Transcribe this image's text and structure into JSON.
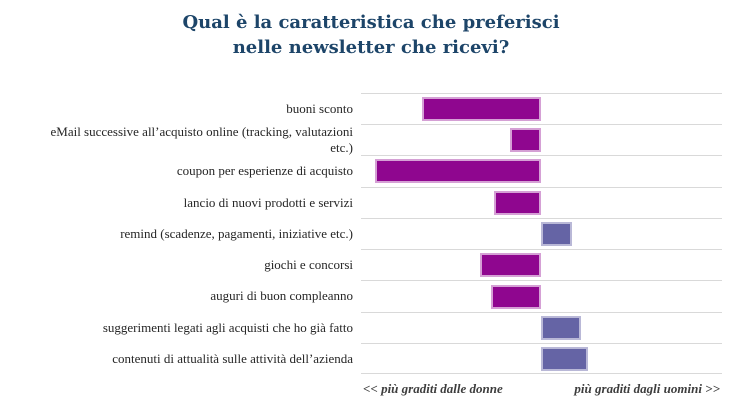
{
  "title": "Qual è la caratteristica che preferisci\nnelle newsletter che ricevi?",
  "axis": {
    "left_label": "<< più graditi dalle donne",
    "right_label": "più graditi dagli uomini  >>"
  },
  "colors": {
    "title": "#1d4569",
    "label_text": "#262626",
    "axis_text": "#3d3d3d",
    "gridline": "#d9d9d9",
    "women_bar": "#8f068f",
    "women_bar_border": "#d5a0d5",
    "men_bar": "#6564a5",
    "men_bar_border": "#b9b8d7",
    "background": "#ffffff"
  },
  "chart_data": {
    "type": "bar",
    "orientation": "horizontal",
    "diverging": true,
    "title": "Qual è la caratteristica che preferisci nelle newsletter che ricevi?",
    "categories": [
      "buoni sconto",
      "eMail successive all’acquisto online (tracking, valutazioni\netc.)",
      "coupon per esperienze di acquisto",
      "lancio di nuovi prodotti e servizi",
      "remind (scadenze, pagamenti, iniziative etc.)",
      "giochi e concorsi",
      "auguri di buon compleanno",
      "suggerimenti legati agli acquisti che ho già fatto",
      "contenuti di attualità sulle attività dell’azienda"
    ],
    "values": [
      -66,
      -17,
      -92,
      -26,
      17,
      -34,
      -28,
      22,
      26
    ],
    "value_scale": "estimated % of half-axis; negative = more liked by women, positive = more liked by men (no numeric axis shown in chart)",
    "xlim": [
      -100,
      100
    ],
    "negative_meaning": "più graditi dalle donne",
    "positive_meaning": "più graditi dagli uomini",
    "grid": "horizontal row separator lines only",
    "legend": "none",
    "xlabel": "",
    "ylabel": ""
  }
}
